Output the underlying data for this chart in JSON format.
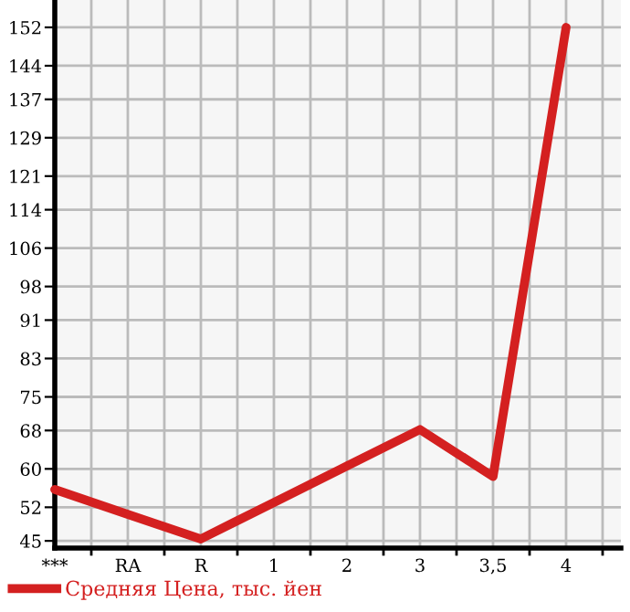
{
  "chart_data": {
    "type": "line",
    "categories": [
      "***",
      "RA",
      "R",
      "1",
      "2",
      "3",
      "3,5",
      "4"
    ],
    "series": [
      {
        "name": "Средняя Цена, тыс. йен",
        "color": "#d42020",
        "values": [
          55.7,
          50.5,
          45.4,
          53,
          60.6,
          68.2,
          58.4,
          152
        ]
      }
    ],
    "ylim": [
      43.5,
      157.7
    ],
    "yticks": [
      45,
      52,
      60,
      68,
      75,
      83,
      91,
      98,
      106,
      114,
      121,
      129,
      137,
      144,
      152
    ],
    "grid": true,
    "legend": "bottom",
    "marker": "none",
    "line_style": "solid"
  }
}
